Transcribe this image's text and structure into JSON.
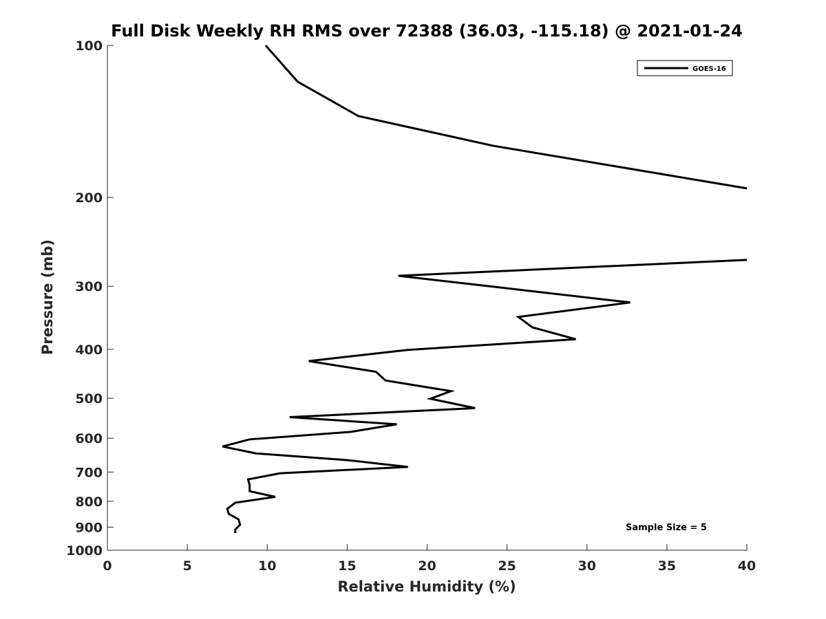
{
  "chart_data": {
    "type": "line",
    "title": "Full Disk Weekly RH RMS over 72388 (36.03, -115.18) @ 2021-01-24",
    "xlabel": "Relative Humidity (%)",
    "ylabel": "Pressure (mb)",
    "xlim": [
      0,
      40
    ],
    "ylim": [
      100,
      1000
    ],
    "y_scale": "log",
    "y_reversed": true,
    "xticks": [
      0,
      5,
      10,
      15,
      20,
      25,
      30,
      35,
      40
    ],
    "yticks": [
      100,
      200,
      300,
      400,
      500,
      600,
      700,
      800,
      900,
      1000
    ],
    "grid": false,
    "legend_position": "top-right",
    "annotation": "Sample Size = 5",
    "series": [
      {
        "name": "GOES-16",
        "color": "#000000",
        "segments": [
          {
            "x": [
              9.9,
              11.9,
              15.7,
              24.1,
              40.0
            ],
            "y": [
              100,
              118,
              138,
              158,
              192
            ]
          },
          {
            "x": [
              40.0,
              18.2,
              24.3,
              32.7,
              25.7,
              26.6,
              29.3,
              18.8,
              12.6,
              16.8,
              17.4,
              21.5,
              20.2,
              23.0,
              11.4,
              18.1,
              15.2,
              8.9,
              7.2,
              9.3,
              15.0,
              18.8,
              10.8,
              8.8,
              8.9,
              8.9,
              10.5,
              8.0,
              7.5,
              7.6,
              8.2,
              8.3,
              8.0,
              8.0
            ],
            "y": [
              266,
              286,
              301,
              323,
              345,
              362,
              382,
              401,
              422,
              443,
              461,
              484,
              501,
              523,
              545,
              563,
              583,
              603,
              623,
              643,
              663,
              684,
              704,
              724,
              743,
              764,
              784,
              805,
              828,
              848,
              868,
              890,
              910,
              925
            ]
          }
        ]
      }
    ]
  }
}
